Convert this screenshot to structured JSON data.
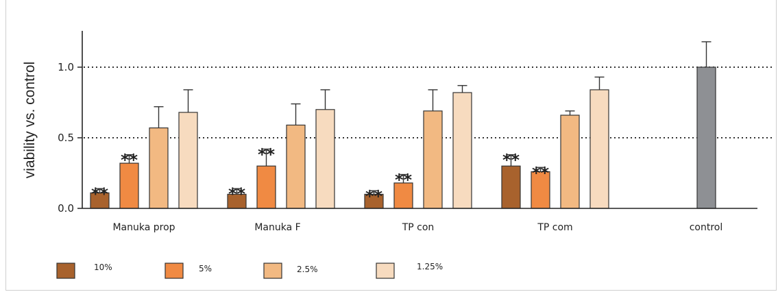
{
  "chart_data": {
    "type": "bar",
    "title": "",
    "xlabel": "",
    "ylabel": "viability vs. control",
    "ylim": [
      0,
      1.25
    ],
    "yticks": [
      "0.0",
      "0.5",
      "1.0"
    ],
    "reference_lines": [
      0.5,
      1.0
    ],
    "categories": [
      "Manuka prop",
      "Manuka F",
      "TP con",
      "TP com",
      "control"
    ],
    "series": [
      {
        "name": "10%",
        "color": "#a8622d",
        "values": [
          0.11,
          0.1,
          0.1,
          0.3,
          null
        ],
        "errors": [
          0.03,
          0.04,
          0.025,
          0.08,
          null
        ],
        "significance": [
          "**",
          "**",
          "**",
          "**",
          null
        ]
      },
      {
        "name": "5%",
        "color": "#f08a43",
        "values": [
          0.32,
          0.3,
          0.18,
          0.26,
          null
        ],
        "errors": [
          0.06,
          0.12,
          0.06,
          0.03,
          null
        ],
        "significance": [
          "**",
          "**",
          "**",
          "**",
          null
        ]
      },
      {
        "name": "2.5%",
        "color": "#f2b982",
        "values": [
          0.57,
          0.59,
          0.69,
          0.66,
          null
        ],
        "errors": [
          0.15,
          0.15,
          0.15,
          0.03,
          null
        ],
        "significance": [
          null,
          null,
          null,
          null,
          null
        ]
      },
      {
        "name": "1.25%",
        "color": "#f7dbbf",
        "values": [
          0.68,
          0.7,
          0.82,
          0.84,
          null
        ],
        "errors": [
          0.16,
          0.14,
          0.05,
          0.09,
          null
        ],
        "significance": [
          null,
          null,
          null,
          null,
          null
        ]
      }
    ],
    "control": {
      "value": 1.0,
      "error": 0.18,
      "color": "#8e9094"
    },
    "legend": {
      "position": "bottom",
      "entries": [
        "10%",
        "5%",
        "2.5%",
        "1.25%"
      ]
    },
    "grid": false
  }
}
